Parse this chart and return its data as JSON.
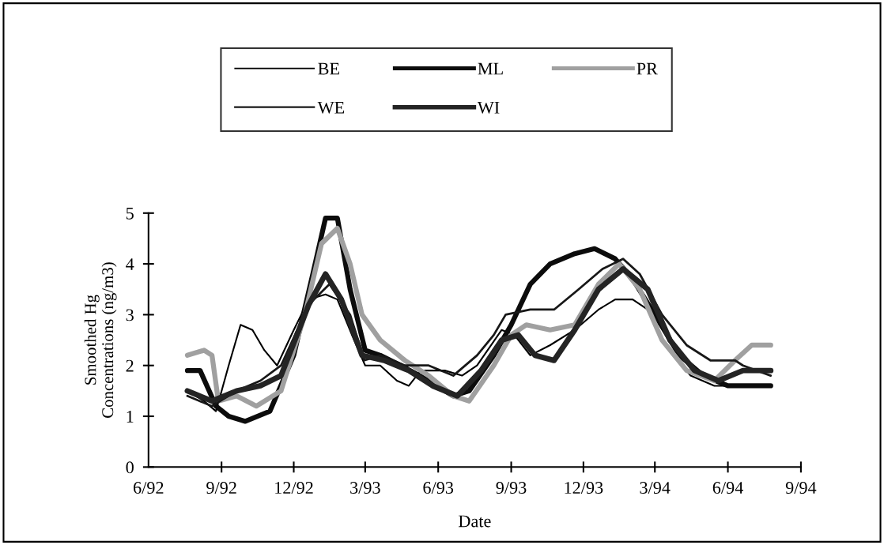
{
  "chart_data": {
    "type": "line",
    "xlabel": "Date",
    "ylabel": "Smoothed Hg\nConcentrations (ng/m3)",
    "xlim": [
      "1992-06-01",
      "1994-09-01"
    ],
    "xticks": [
      {
        "value": "1992-06-01",
        "label": "6/92"
      },
      {
        "value": "1992-09-01",
        "label": "9/92"
      },
      {
        "value": "1992-12-01",
        "label": "12/92"
      },
      {
        "value": "1993-03-01",
        "label": "3/93"
      },
      {
        "value": "1993-06-01",
        "label": "6/93"
      },
      {
        "value": "1993-09-01",
        "label": "9/93"
      },
      {
        "value": "1993-12-01",
        "label": "12/93"
      },
      {
        "value": "1994-03-01",
        "label": "3/94"
      },
      {
        "value": "1994-06-01",
        "label": "6/94"
      },
      {
        "value": "1994-09-01",
        "label": "9/94"
      }
    ],
    "ylim": [
      0,
      5
    ],
    "yticks": [
      0,
      1,
      2,
      3,
      4,
      5
    ],
    "grid": false,
    "legend": "top",
    "marker": "none",
    "line_style": "solid",
    "series": [
      {
        "name": "BE",
        "color": "#000000",
        "x": [
          "1992-07-20",
          "1992-08-10",
          "1992-08-25",
          "1992-09-10",
          "1992-09-25",
          "1992-10-10",
          "1992-10-25",
          "1992-11-10",
          "1992-12-01",
          "1992-12-20",
          "1993-01-10",
          "1993-01-25",
          "1993-02-15",
          "1993-03-01",
          "1993-03-20",
          "1993-04-10",
          "1993-04-25",
          "1993-05-10",
          "1993-06-10",
          "1993-07-01",
          "1993-07-20",
          "1993-08-20",
          "1993-09-05",
          "1993-09-25",
          "1993-10-20",
          "1993-11-20",
          "1993-12-20",
          "1994-01-10",
          "1994-02-01",
          "1994-02-20",
          "1994-03-15",
          "1994-04-15",
          "1994-05-15",
          "1994-06-15",
          "1994-07-25"
        ],
        "values": [
          1.5,
          1.3,
          1.1,
          2.0,
          2.8,
          2.7,
          2.3,
          2.0,
          2.7,
          3.3,
          3.4,
          3.3,
          2.5,
          2.0,
          2.0,
          1.7,
          1.6,
          1.9,
          1.9,
          1.8,
          2.0,
          2.7,
          2.6,
          2.2,
          2.4,
          2.7,
          3.1,
          3.3,
          3.3,
          3.1,
          2.4,
          1.8,
          1.6,
          1.6,
          1.6
        ]
      },
      {
        "name": "ML",
        "color": "#0c0c0c",
        "x": [
          "1992-07-20",
          "1992-08-05",
          "1992-08-25",
          "1992-09-10",
          "1992-10-01",
          "1992-11-01",
          "1992-12-01",
          "1992-12-25",
          "1993-01-10",
          "1993-01-25",
          "1993-02-10",
          "1993-03-01",
          "1993-03-20",
          "1993-04-15",
          "1993-05-20",
          "1993-06-20",
          "1993-07-10",
          "1993-08-10",
          "1993-09-01",
          "1993-09-25",
          "1993-10-20",
          "1993-11-20",
          "1993-12-15",
          "1994-01-10",
          "1994-02-01",
          "1994-03-01",
          "1994-04-01",
          "1994-05-01",
          "1994-06-01",
          "1994-07-25"
        ],
        "values": [
          1.9,
          1.9,
          1.2,
          1.0,
          0.9,
          1.1,
          2.2,
          3.8,
          4.9,
          4.9,
          3.5,
          2.3,
          2.2,
          2.0,
          1.7,
          1.4,
          1.5,
          2.2,
          2.8,
          3.6,
          4.0,
          4.2,
          4.3,
          4.1,
          3.7,
          3.0,
          2.2,
          1.8,
          1.6,
          1.6
        ]
      },
      {
        "name": "PR",
        "color": "#a0a0a0",
        "x": [
          "1992-07-20",
          "1992-08-10",
          "1992-08-20",
          "1992-08-28",
          "1992-09-20",
          "1992-10-15",
          "1992-11-15",
          "1992-12-15",
          "1993-01-05",
          "1993-01-25",
          "1993-02-10",
          "1993-02-25",
          "1993-03-20",
          "1993-04-20",
          "1993-05-20",
          "1993-06-20",
          "1993-07-10",
          "1993-08-10",
          "1993-09-01",
          "1993-09-20",
          "1993-10-20",
          "1993-11-20",
          "1993-12-20",
          "1994-01-15",
          "1994-02-10",
          "1994-03-10",
          "1994-04-10",
          "1994-05-15",
          "1994-06-10",
          "1994-07-01",
          "1994-07-25"
        ],
        "values": [
          2.2,
          2.3,
          2.2,
          1.3,
          1.4,
          1.2,
          1.5,
          3.0,
          4.4,
          4.7,
          4.0,
          3.0,
          2.5,
          2.1,
          1.8,
          1.4,
          1.3,
          2.0,
          2.6,
          2.8,
          2.7,
          2.8,
          3.6,
          4.0,
          3.5,
          2.5,
          1.9,
          1.7,
          2.1,
          2.4,
          2.4
        ]
      },
      {
        "name": "WE",
        "color": "#181818",
        "x": [
          "1992-07-20",
          "1992-08-20",
          "1992-09-20",
          "1992-10-20",
          "1992-11-15",
          "1992-12-20",
          "1993-01-15",
          "1993-02-10",
          "1993-02-28",
          "1993-03-20",
          "1993-04-20",
          "1993-05-20",
          "1993-06-20",
          "1993-07-20",
          "1993-08-10",
          "1993-08-25",
          "1993-09-25",
          "1993-10-25",
          "1993-11-25",
          "1993-12-25",
          "1994-01-20",
          "1994-02-10",
          "1994-03-10",
          "1994-04-10",
          "1994-05-10",
          "1994-06-10",
          "1994-06-20",
          "1994-07-25"
        ],
        "values": [
          1.4,
          1.2,
          1.5,
          1.7,
          2.0,
          3.2,
          3.6,
          3.0,
          2.1,
          2.2,
          2.0,
          2.0,
          1.8,
          2.2,
          2.6,
          3.0,
          3.1,
          3.1,
          3.5,
          3.9,
          4.1,
          3.8,
          3.0,
          2.4,
          2.1,
          2.1,
          2.0,
          1.8
        ]
      },
      {
        "name": "WI",
        "color": "#242424",
        "x": [
          "1992-07-20",
          "1992-08-20",
          "1992-09-20",
          "1992-10-20",
          "1992-11-15",
          "1992-12-20",
          "1993-01-10",
          "1993-01-30",
          "1993-02-25",
          "1993-03-25",
          "1993-04-25",
          "1993-05-25",
          "1993-06-25",
          "1993-07-25",
          "1993-08-20",
          "1993-09-10",
          "1993-10-01",
          "1993-10-25",
          "1993-11-20",
          "1993-12-20",
          "1994-01-20",
          "1994-02-20",
          "1994-03-20",
          "1994-04-20",
          "1994-05-20",
          "1994-06-20",
          "1994-07-25"
        ],
        "values": [
          1.5,
          1.3,
          1.5,
          1.6,
          1.8,
          3.2,
          3.8,
          3.3,
          2.2,
          2.1,
          1.9,
          1.6,
          1.4,
          1.9,
          2.5,
          2.6,
          2.2,
          2.1,
          2.7,
          3.5,
          3.9,
          3.5,
          2.5,
          1.9,
          1.7,
          1.9,
          1.9
        ]
      }
    ]
  }
}
